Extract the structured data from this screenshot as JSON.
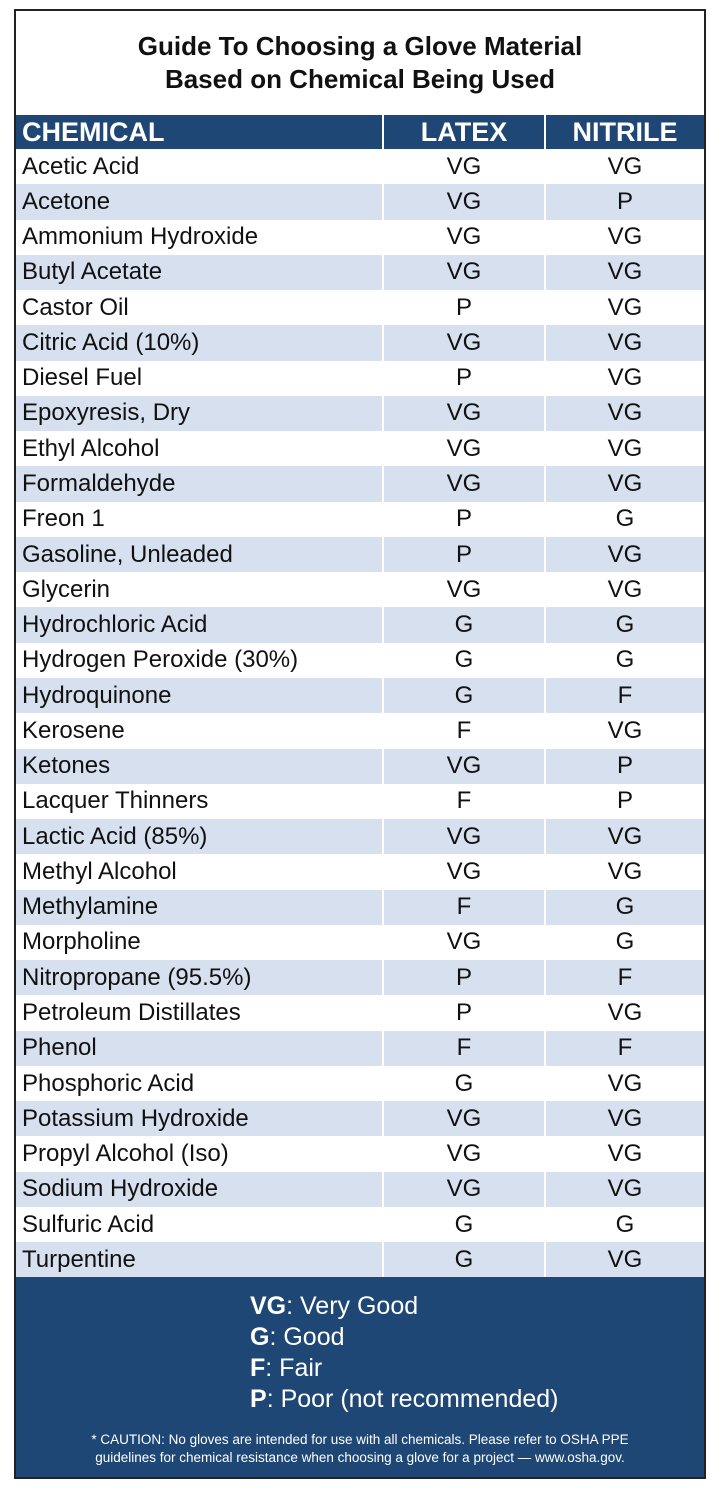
{
  "header": {
    "title_lines": [
      "Guide To Choosing a Glove Material",
      "Based on Chemical Being Used"
    ]
  },
  "table": {
    "columns": [
      "CHEMICAL",
      "LATEX",
      "NITRILE"
    ],
    "rows": [
      [
        "Acetic Acid",
        "VG",
        "VG"
      ],
      [
        "Acetone",
        "VG",
        "P"
      ],
      [
        "Ammonium Hydroxide",
        "VG",
        "VG"
      ],
      [
        "Butyl Acetate",
        "VG",
        "VG"
      ],
      [
        "Castor Oil",
        "P",
        "VG"
      ],
      [
        "Citric Acid (10%)",
        "VG",
        "VG"
      ],
      [
        "Diesel Fuel",
        "P",
        "VG"
      ],
      [
        "Epoxyresis, Dry",
        "VG",
        "VG"
      ],
      [
        "Ethyl Alcohol",
        "VG",
        "VG"
      ],
      [
        "Formaldehyde",
        "VG",
        "VG"
      ],
      [
        "Freon 1",
        "P",
        "G"
      ],
      [
        "Gasoline, Unleaded",
        "P",
        "VG"
      ],
      [
        "Glycerin",
        "VG",
        "VG"
      ],
      [
        "Hydrochloric Acid",
        "G",
        "G"
      ],
      [
        "Hydrogen Peroxide (30%)",
        "G",
        "G"
      ],
      [
        "Hydroquinone",
        "G",
        "F"
      ],
      [
        "Kerosene",
        "F",
        "VG"
      ],
      [
        "Ketones",
        "VG",
        "P"
      ],
      [
        "Lacquer Thinners",
        "F",
        "P"
      ],
      [
        "Lactic Acid (85%)",
        "VG",
        "VG"
      ],
      [
        "Methyl Alcohol",
        "VG",
        "VG"
      ],
      [
        "Methylamine",
        "F",
        "G"
      ],
      [
        "Morpholine",
        "VG",
        "G"
      ],
      [
        "Nitropropane (95.5%)",
        "P",
        "F"
      ],
      [
        "Petroleum Distillates",
        "P",
        "VG"
      ],
      [
        "Phenol",
        "F",
        "F"
      ],
      [
        "Phosphoric Acid",
        "G",
        "VG"
      ],
      [
        "Potassium Hydroxide",
        "VG",
        "VG"
      ],
      [
        "Propyl Alcohol (Iso)",
        "VG",
        "VG"
      ],
      [
        "Sodium Hydroxide",
        "VG",
        "VG"
      ],
      [
        "Sulfuric Acid",
        "G",
        "G"
      ],
      [
        "Turpentine",
        "G",
        "VG"
      ]
    ]
  },
  "legend": [
    {
      "key": "VG",
      "text": ": Very Good"
    },
    {
      "key": "G",
      "text": ": Good"
    },
    {
      "key": "F",
      "text": ": Fair"
    },
    {
      "key": "P",
      "text": ": Poor (not recommended)"
    }
  ],
  "caution_lines": [
    "* CAUTION: No gloves are intended for use with all chemicals. Please refer to OSHA PPE",
    "guidelines for chemical resistance when choosing a glove for a project — www.osha.gov."
  ]
}
